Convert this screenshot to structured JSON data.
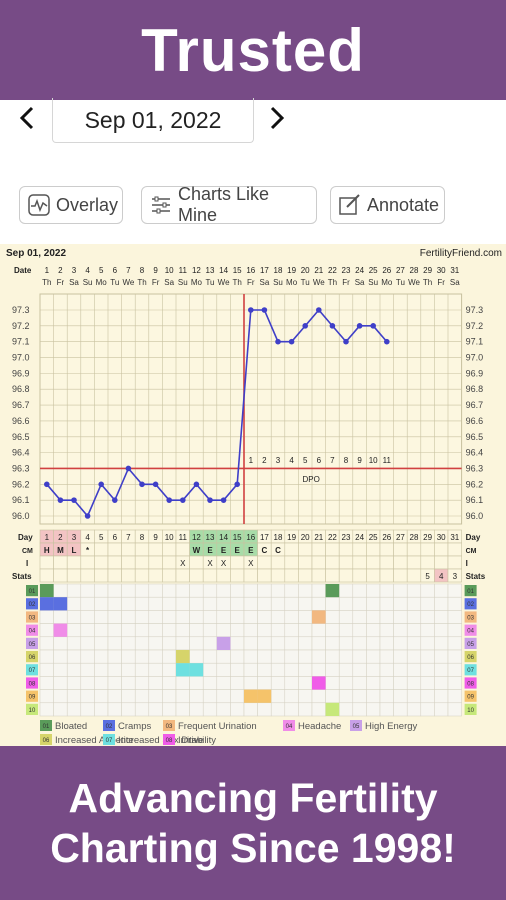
{
  "banner_top": {
    "text": "Trusted"
  },
  "date_nav": {
    "date": "Sep 01, 2022",
    "prev_glyph": "‹",
    "next_glyph": "›"
  },
  "toolbar": {
    "overlay_label": "Overlay",
    "charts_like_mine_label": "Charts Like Mine",
    "annotate_label": "Annotate"
  },
  "chart_header": {
    "date": "Sep 01, 2022",
    "site": "FertilityFriend.com"
  },
  "chart_data": {
    "type": "line",
    "date_label": "Date",
    "day_label": "Day",
    "cm_label": "CM",
    "i_label": "I",
    "stats_label": "Stats",
    "dates": [
      "1",
      "2",
      "3",
      "4",
      "5",
      "6",
      "7",
      "8",
      "9",
      "10",
      "11",
      "12",
      "13",
      "14",
      "15",
      "16",
      "17",
      "18",
      "19",
      "20",
      "21",
      "22",
      "23",
      "24",
      "25",
      "26",
      "27",
      "28",
      "29",
      "30",
      "31"
    ],
    "weekdays": [
      "Th",
      "Fr",
      "Sa",
      "Su",
      "Mo",
      "Tu",
      "We",
      "Th",
      "Fr",
      "Sa",
      "Su",
      "Mo",
      "Tu",
      "We",
      "Th",
      "Fr",
      "Sa",
      "Su",
      "Mo",
      "Tu",
      "We",
      "Th",
      "Fr",
      "Sa",
      "Su",
      "Mo",
      "Tu",
      "We",
      "Th",
      "Fr",
      "Sa"
    ],
    "days": [
      "1",
      "2",
      "3",
      "4",
      "5",
      "6",
      "7",
      "8",
      "9",
      "10",
      "11",
      "12",
      "13",
      "14",
      "15",
      "16",
      "17",
      "18",
      "19",
      "20",
      "21",
      "22",
      "23",
      "24",
      "25",
      "26",
      "27",
      "28",
      "29",
      "30",
      "31"
    ],
    "ylim": [
      96.0,
      97.3
    ],
    "y_ticks": [
      "97.3",
      "97.2",
      "97.1",
      "97.0",
      "96.9",
      "96.8",
      "96.7",
      "96.6",
      "96.5",
      "96.4",
      "96.3",
      "96.2",
      "96.1",
      "96.0"
    ],
    "temperatures": [
      96.2,
      96.1,
      96.1,
      96.0,
      96.2,
      96.1,
      96.3,
      96.2,
      96.2,
      96.1,
      96.1,
      96.2,
      96.1,
      96.1,
      96.2,
      97.3,
      97.3,
      97.1,
      97.1,
      97.2,
      97.3,
      97.2,
      97.1,
      97.2,
      97.2,
      97.1,
      null,
      null,
      null,
      null,
      null
    ],
    "coverline": 96.3,
    "ovulation_day": 15,
    "dpo_label": "DPO",
    "dpo_numbers": [
      "1",
      "2",
      "3",
      "4",
      "5",
      "6",
      "7",
      "8",
      "9",
      "10",
      "11"
    ],
    "cm_codes": [
      "H",
      "M",
      "L",
      "*",
      "",
      "",
      "",
      "",
      "",
      "",
      "",
      "W",
      "E",
      "E",
      "E",
      "E",
      "C",
      "C",
      "",
      "",
      "",
      "",
      "",
      "",
      "",
      "",
      "",
      "",
      "",
      "",
      ""
    ],
    "intercourse": [
      "",
      "",
      "",
      "",
      "",
      "",
      "",
      "",
      "",
      "",
      "X",
      "",
      "X",
      "X",
      "",
      "X",
      "",
      "",
      "",
      "",
      "",
      "",
      "",
      "",
      "",
      "",
      "",
      "",
      "",
      "",
      ""
    ],
    "stats_counts": [
      "",
      "",
      "",
      "",
      "",
      "",
      "",
      "",
      "",
      "",
      "",
      "",
      "",
      "",
      "",
      "",
      "",
      "",
      "",
      "",
      "",
      "",
      "",
      "",
      "",
      "",
      "",
      "",
      "5",
      "4",
      "3"
    ],
    "stat_codes": [
      "01",
      "02",
      "03",
      "04",
      "05",
      "06",
      "07",
      "08",
      "09",
      "10"
    ],
    "stat_colors": [
      "#5a9b5a",
      "#5a6fe0",
      "#f2b880",
      "#f08ce8",
      "#c8a0e8",
      "#d6d46a",
      "#6ee0e0",
      "#f05ce8",
      "#f5c36a",
      "#c6e87a"
    ],
    "symptom_marks": [
      {
        "row": 1,
        "days": [
          1,
          22
        ]
      },
      {
        "row": 2,
        "days": [
          1,
          2
        ]
      },
      {
        "row": 3,
        "days": [
          21
        ]
      },
      {
        "row": 4,
        "days": [
          2
        ]
      },
      {
        "row": 5,
        "days": [
          14
        ]
      },
      {
        "row": 6,
        "days": [
          11
        ]
      },
      {
        "row": 7,
        "days": [
          11,
          12
        ]
      },
      {
        "row": 8,
        "days": [
          21
        ]
      },
      {
        "row": 9,
        "days": [
          16,
          17
        ]
      },
      {
        "row": 10,
        "days": [
          22
        ]
      }
    ],
    "legend": [
      {
        "code": "01",
        "label": "Bloated"
      },
      {
        "code": "02",
        "label": "Cramps"
      },
      {
        "code": "03",
        "label": "Frequent Urination"
      },
      {
        "code": "04",
        "label": "Headache"
      },
      {
        "code": "05",
        "label": "High Energy"
      },
      {
        "code": "06",
        "label": "Increased Appetite"
      },
      {
        "code": "07",
        "label": "Increased Sex Drive"
      },
      {
        "code": "08",
        "label": "Irritability"
      }
    ],
    "colors": {
      "line": "#3f3fc8",
      "coverline": "#d04040",
      "grid": "#c9c2a0",
      "fertile": "#a8dca8",
      "period": "#f3c4c4"
    }
  },
  "banner_bottom": {
    "line1": "Advancing Fertility",
    "line2": "Charting Since 1998!"
  }
}
